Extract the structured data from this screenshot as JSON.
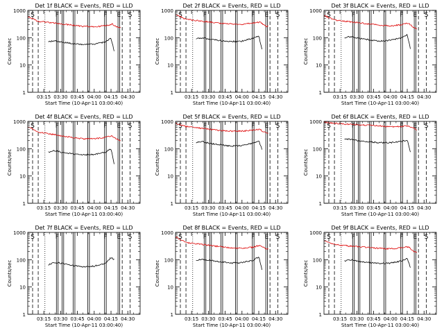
{
  "colors": {
    "events": "#000000",
    "lld": "#dd0000",
    "axes": "#000000",
    "background": "#ffffff"
  },
  "common": {
    "ylabel": "Counts/sec",
    "xlabel": "Start Time (10-Apr-11 03:00:40)",
    "x_ticks": [
      "03:15",
      "03:30",
      "03:45",
      "04:00",
      "04:15",
      "04:30"
    ],
    "x_tick_minutes": [
      15,
      30,
      45,
      60,
      75,
      90
    ],
    "y_ticks": [
      "1",
      "10",
      "100",
      "1000"
    ],
    "y_tick_values": [
      1,
      10,
      100,
      1000
    ],
    "xlim_minutes": [
      0.67,
      101
    ],
    "ylim": [
      1,
      1000
    ],
    "y_scale": "log",
    "markers": [
      {
        "label": "S",
        "minute": 5,
        "style": "dashed"
      },
      {
        "label": "",
        "minute": 10,
        "style": "dashed"
      },
      {
        "label": "",
        "minute": 16,
        "style": "dotted"
      },
      {
        "label": "F",
        "minute": 27,
        "style": "double"
      },
      {
        "label": "",
        "minute": 32,
        "style": "double"
      },
      {
        "label": "",
        "minute": 42,
        "style": "double"
      },
      {
        "label": "",
        "minute": 55,
        "style": "double"
      },
      {
        "label": "F",
        "minute": 70,
        "style": "double"
      },
      {
        "label": "E",
        "minute": 82,
        "style": "double"
      },
      {
        "label": "",
        "minute": 85,
        "style": "dashed"
      },
      {
        "label": "S",
        "minute": 92,
        "style": "dashed"
      }
    ]
  },
  "chart_data": [
    {
      "type": "line",
      "title": "Det 1f BLACK = Events, RED = LLD",
      "series": [
        {
          "values_at": [
            0.67,
            10,
            20,
            30,
            40,
            50,
            60,
            70,
            76,
            79,
            82,
            84
          ],
          "values": [
            600,
            400,
            360,
            320,
            290,
            260,
            250,
            275,
            320,
            260,
            240,
            240
          ],
          "color_key": "lld"
        },
        {
          "values_at": [
            19,
            25,
            30,
            40,
            50,
            60,
            70,
            75,
            78
          ],
          "values": [
            70,
            78,
            70,
            62,
            55,
            58,
            70,
            95,
            30
          ],
          "color_key": "events"
        }
      ]
    },
    {
      "type": "line",
      "title": "Det 2f BLACK = Events, RED = LLD",
      "series": [
        {
          "values_at": [
            0.67,
            10,
            20,
            30,
            40,
            50,
            60,
            70,
            76,
            79,
            82,
            84
          ],
          "values": [
            700,
            480,
            420,
            380,
            340,
            320,
            310,
            340,
            380,
            300,
            260,
            270
          ],
          "color_key": "lld"
        },
        {
          "values_at": [
            19,
            25,
            30,
            40,
            50,
            60,
            70,
            75,
            78
          ],
          "values": [
            90,
            100,
            90,
            80,
            72,
            75,
            95,
            120,
            35
          ],
          "color_key": "events"
        }
      ]
    },
    {
      "type": "line",
      "title": "Det 3f BLACK = Events, RED = LLD",
      "series": [
        {
          "values_at": [
            0.67,
            10,
            20,
            30,
            40,
            50,
            60,
            70,
            76,
            79,
            82,
            84
          ],
          "values": [
            650,
            450,
            400,
            360,
            320,
            290,
            270,
            300,
            350,
            270,
            220,
            210
          ],
          "color_key": "lld"
        },
        {
          "values_at": [
            19,
            25,
            30,
            40,
            50,
            60,
            70,
            75,
            78
          ],
          "values": [
            100,
            110,
            95,
            85,
            75,
            80,
            100,
            130,
            38
          ],
          "color_key": "events"
        }
      ]
    },
    {
      "type": "line",
      "title": "Det 4f BLACK = Events, RED = LLD",
      "series": [
        {
          "values_at": [
            0.67,
            10,
            20,
            30,
            40,
            50,
            60,
            70,
            76,
            79,
            82,
            84
          ],
          "values": [
            650,
            400,
            350,
            300,
            260,
            230,
            230,
            260,
            300,
            240,
            200,
            190
          ],
          "color_key": "lld"
        },
        {
          "values_at": [
            19,
            25,
            30,
            40,
            50,
            60,
            70,
            75,
            78
          ],
          "values": [
            75,
            85,
            75,
            65,
            60,
            62,
            75,
            100,
            25
          ],
          "color_key": "events"
        }
      ]
    },
    {
      "type": "line",
      "title": "Det 5f BLACK = Events, RED = LLD",
      "series": [
        {
          "values_at": [
            0.67,
            10,
            20,
            30,
            40,
            50,
            60,
            70,
            76,
            79,
            82,
            84
          ],
          "values": [
            850,
            650,
            580,
            520,
            470,
            440,
            440,
            480,
            520,
            420,
            380,
            380
          ],
          "color_key": "lld"
        },
        {
          "values_at": [
            19,
            25,
            30,
            40,
            50,
            60,
            70,
            75,
            78
          ],
          "values": [
            170,
            180,
            160,
            140,
            125,
            130,
            160,
            200,
            90
          ],
          "color_key": "events"
        }
      ]
    },
    {
      "type": "line",
      "title": "Det 6f BLACK = Events, RED = LLD",
      "series": [
        {
          "values_at": [
            0.67,
            10,
            20,
            30,
            40,
            50,
            60,
            70,
            76,
            79,
            82,
            84
          ],
          "values": [
            950,
            850,
            800,
            760,
            720,
            680,
            640,
            650,
            680,
            600,
            520,
            500
          ],
          "color_key": "lld"
        },
        {
          "values_at": [
            19,
            25,
            30,
            40,
            50,
            60,
            70,
            75,
            78
          ],
          "values": [
            230,
            220,
            200,
            180,
            165,
            165,
            185,
            210,
            70
          ],
          "color_key": "events"
        }
      ]
    },
    {
      "type": "line",
      "title": "Det 7f BLACK = Events, RED = LLD",
      "series": [
        {
          "values_at": [
            19,
            25,
            30,
            40,
            50,
            60,
            70,
            75,
            78
          ],
          "values": [
            65,
            80,
            75,
            62,
            55,
            58,
            75,
            120,
            100
          ],
          "color_key": "events"
        }
      ]
    },
    {
      "type": "line",
      "title": "Det 8f BLACK = Events, RED = LLD",
      "series": [
        {
          "values_at": [
            0.67,
            10,
            20,
            30,
            40,
            50,
            60,
            70,
            76,
            79,
            82,
            84
          ],
          "values": [
            700,
            420,
            380,
            340,
            300,
            270,
            260,
            290,
            340,
            280,
            250,
            240
          ],
          "color_key": "lld"
        },
        {
          "values_at": [
            19,
            25,
            30,
            40,
            50,
            60,
            70,
            75,
            78
          ],
          "values": [
            95,
            105,
            95,
            85,
            75,
            78,
            95,
            130,
            40
          ],
          "color_key": "events"
        }
      ]
    },
    {
      "type": "line",
      "title": "Det 9f BLACK = Events, RED = LLD",
      "series": [
        {
          "values_at": [
            0.67,
            10,
            20,
            30,
            40,
            50,
            60,
            70,
            76,
            79,
            82,
            84
          ],
          "values": [
            480,
            360,
            330,
            300,
            280,
            260,
            250,
            270,
            300,
            230,
            190,
            190
          ],
          "color_key": "lld"
        },
        {
          "values_at": [
            19,
            25,
            30,
            40,
            50,
            60,
            70,
            75,
            78
          ],
          "values": [
            90,
            100,
            90,
            80,
            72,
            75,
            90,
            115,
            50
          ],
          "color_key": "events"
        }
      ]
    }
  ]
}
